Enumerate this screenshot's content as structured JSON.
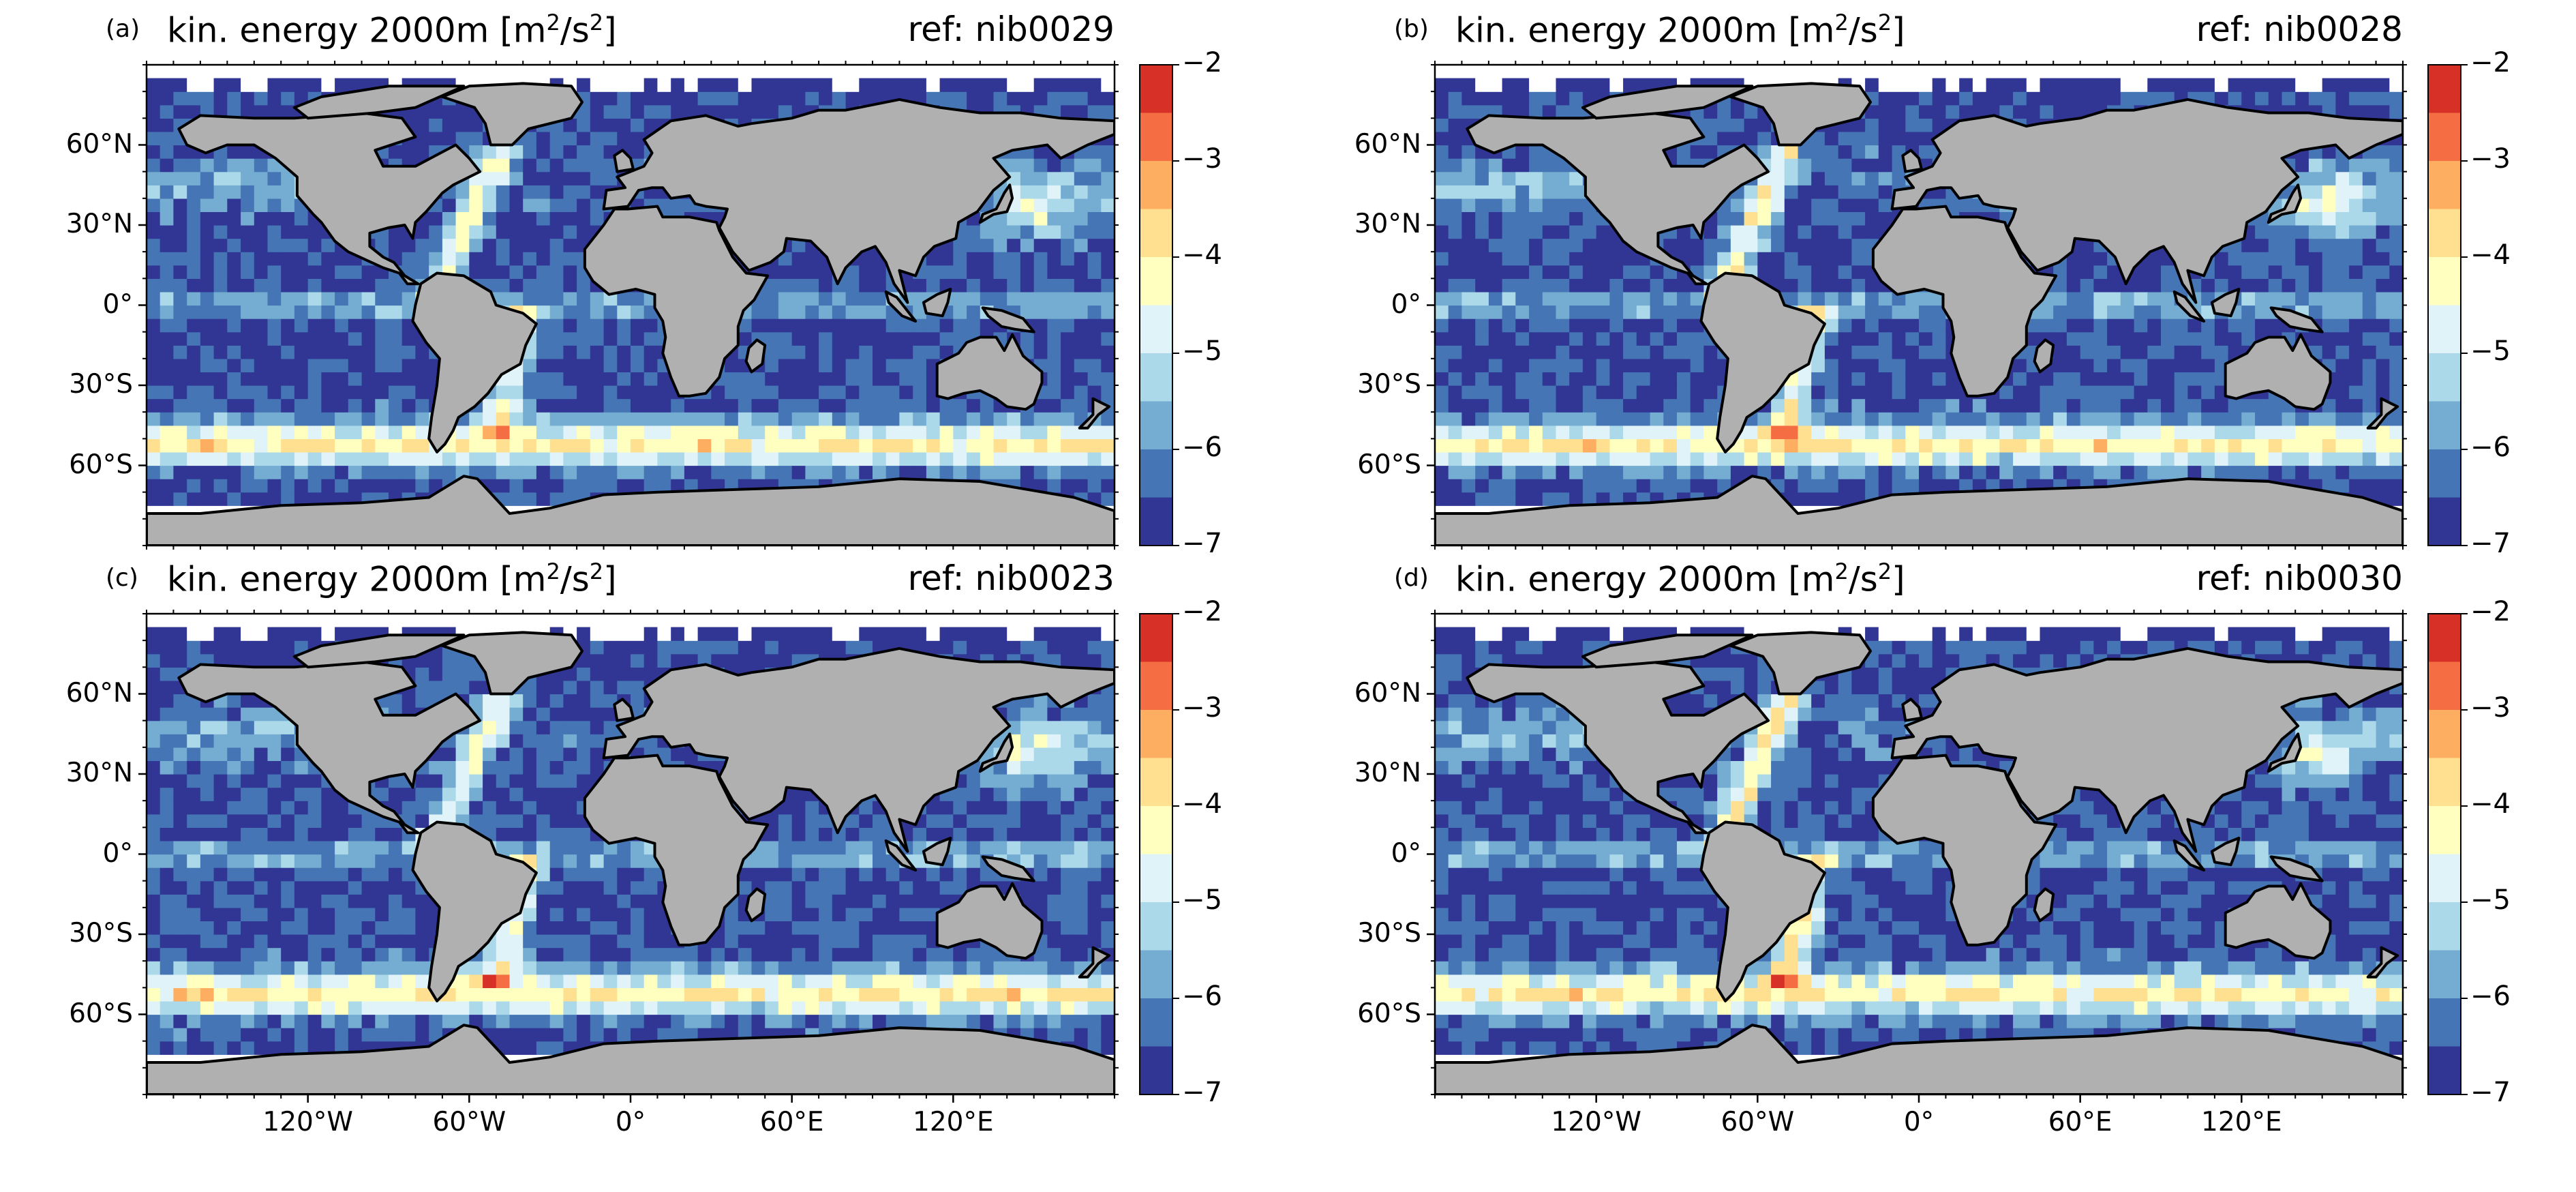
{
  "panels": [
    {
      "tag": "(a)",
      "title": "kin. energy 2000m [m",
      "ref": "ref: nib0029",
      "variant": 0.0
    },
    {
      "tag": "(b)",
      "title": "kin. energy 2000m [m",
      "ref": "ref: nib0028",
      "variant": 0.5
    },
    {
      "tag": "(c)",
      "title": "kin. energy 2000m [m",
      "ref": "ref: nib0023",
      "variant": 0.25
    },
    {
      "tag": "(d)",
      "title": "kin. energy 2000m [m",
      "ref": "ref: nib0030",
      "variant": 0.75
    }
  ],
  "units": {
    "sup1": "2",
    "mid": "/s",
    "sup2": "2",
    "close": "]"
  },
  "lat_ticks": [
    "60°N",
    "30°N",
    "0°",
    "30°S",
    "60°S"
  ],
  "lon_ticks": [
    "120°W",
    "60°W",
    "0°",
    "60°E",
    "120°E"
  ],
  "colorbar": {
    "min": -7,
    "max": -2,
    "tick_labels": [
      "−2",
      "−3",
      "−4",
      "−5",
      "−6",
      "−7"
    ],
    "levels_colors": [
      "#d73027",
      "#f46d43",
      "#fdae61",
      "#fee090",
      "#ffffbf",
      "#e0f3f8",
      "#abd9e9",
      "#74add1",
      "#4575b4",
      "#313695"
    ]
  },
  "colors": {
    "land": "#b0b0b0",
    "coast": "#000000",
    "deep": "#313695"
  }
}
